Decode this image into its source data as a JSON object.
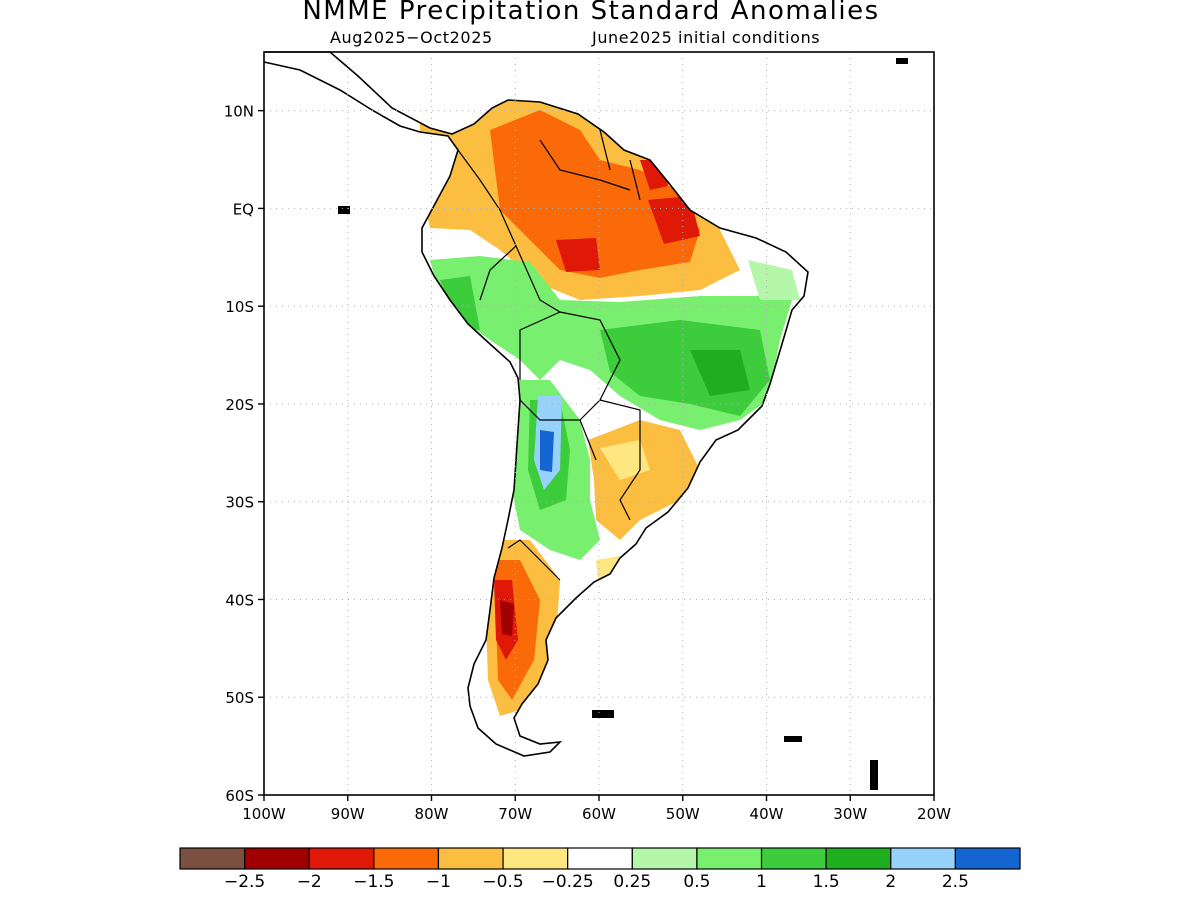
{
  "title": "NMME Precipitation Standard Anomalies",
  "subtitle_period": "Aug2025−Oct2025",
  "subtitle_ic": "June2025 initial conditions",
  "lat_ticks": [
    {
      "value": 10,
      "label": "10N"
    },
    {
      "value": 0,
      "label": "EQ"
    },
    {
      "value": -10,
      "label": "10S"
    },
    {
      "value": -20,
      "label": "20S"
    },
    {
      "value": -30,
      "label": "30S"
    },
    {
      "value": -40,
      "label": "40S"
    },
    {
      "value": -50,
      "label": "50S"
    },
    {
      "value": -60,
      "label": "60S"
    }
  ],
  "lon_ticks": [
    {
      "value": -100,
      "label": "100W"
    },
    {
      "value": -90,
      "label": "90W"
    },
    {
      "value": -80,
      "label": "80W"
    },
    {
      "value": -70,
      "label": "70W"
    },
    {
      "value": -60,
      "label": "60W"
    },
    {
      "value": -50,
      "label": "50W"
    },
    {
      "value": -40,
      "label": "40W"
    },
    {
      "value": -30,
      "label": "30W"
    },
    {
      "value": -20,
      "label": "20W"
    }
  ],
  "extent": {
    "lon_min": -100,
    "lon_max": -20,
    "lat_min": -60,
    "lat_max": 16
  },
  "legend": {
    "colors": [
      "#7b5040",
      "#a00000",
      "#e01808",
      "#fa6a08",
      "#fcbe40",
      "#fee680",
      "#ffffff",
      "#b4f7a8",
      "#78ef6e",
      "#3ccc3c",
      "#1eae1e",
      "#96d2fa",
      "#1464d2"
    ],
    "labels": [
      "−2.5",
      "−2",
      "−1.5",
      "−1",
      "−0.5",
      "−0.25",
      "0.25",
      "0.5",
      "1",
      "1.5",
      "2",
      "2.5"
    ]
  }
}
